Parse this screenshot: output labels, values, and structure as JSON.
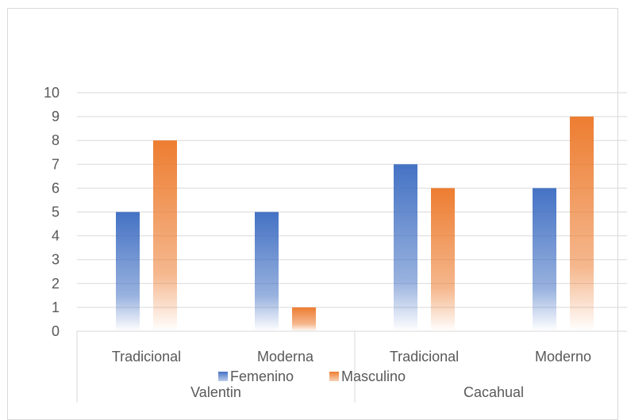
{
  "chart_data": {
    "type": "bar",
    "title": "",
    "xlabel": "",
    "ylabel": "",
    "ylim": [
      0,
      10
    ],
    "yticks": [
      0,
      1,
      2,
      3,
      4,
      5,
      6,
      7,
      8,
      9,
      10
    ],
    "grid": true,
    "legend_position": "bottom",
    "groups": [
      {
        "label": "Valentin",
        "categories": [
          "Tradicional",
          "Moderna"
        ]
      },
      {
        "label": "Cacahual",
        "categories": [
          "Tradicional",
          "Moderno"
        ]
      }
    ],
    "categories": [
      "Tradicional",
      "Moderna",
      "Tradicional",
      "Moderno"
    ],
    "series": [
      {
        "name": "Femenino",
        "values": [
          5,
          5,
          7,
          6
        ],
        "color": "#4472c4"
      },
      {
        "name": "Masculino",
        "values": [
          8,
          1,
          6,
          9
        ],
        "color": "#ed7d31"
      }
    ]
  }
}
